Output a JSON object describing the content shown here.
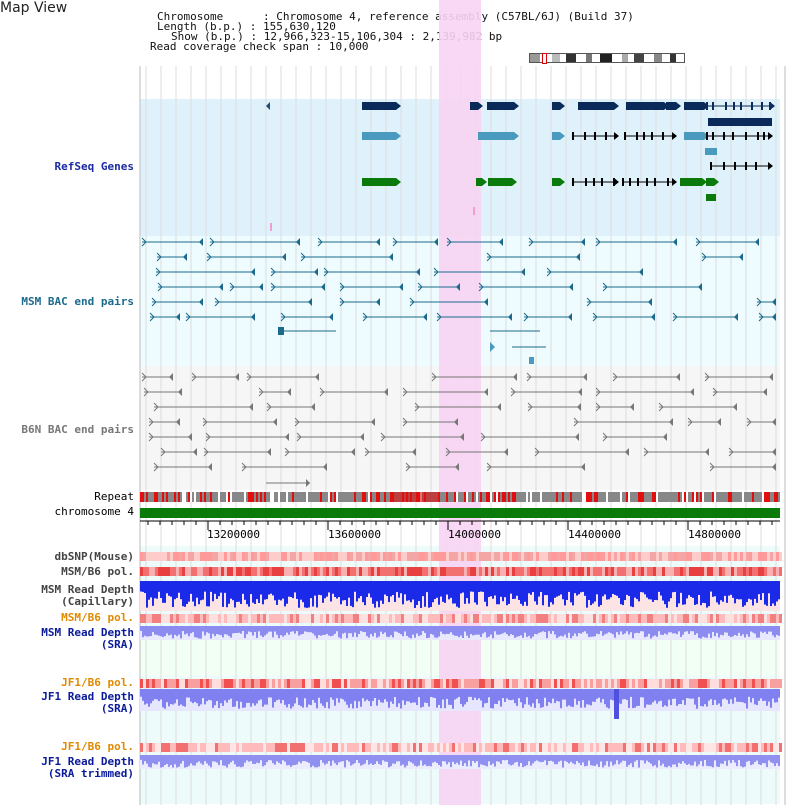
{
  "app": {
    "title": "Map View"
  },
  "header": {
    "chromosome_label": "Chromosome",
    "chromosome_value": ": Chromosome 4, reference assembly (C57BL/6J) (Build 37)",
    "length_label": "Length (b.p.)",
    "length_value": ": 155,630,120",
    "show_label": "Show (b.p.)",
    "show_value": ": 12,966,323-15,106,304 : 2,139,982 bp",
    "span_label": "Read coverage check span",
    "span_value": ": 10,000"
  },
  "tracks": {
    "refseq": "RefSeq Genes",
    "msm_bac": "MSM BAC end pairs",
    "b6n_bac": "B6N BAC end pairs",
    "repeat": "Repeat",
    "chromosome": "chromosome 4",
    "dbsnp": "dbSNP(Mouse)",
    "msm_b6_pol_1": "MSM/B6 pol.",
    "msm_depth_cap": "MSM Read Depth\n(Capillary)",
    "msm_b6_pol_2": "MSM/B6 pol.",
    "msm_depth_sra": "MSM Read Depth\n(SRA)",
    "jf1_b6_pol_1": "JF1/B6 pol.",
    "jf1_depth_sra": "JF1 Read Depth\n(SRA)",
    "jf1_b6_pol_2": "JF1/B6 pol.",
    "jf1_depth_trim": "JF1 Read Depth\n(SRA trimmed)"
  },
  "axis": {
    "ticks": [
      "13200000",
      "13600000",
      "14000000",
      "14400000",
      "14800000"
    ]
  },
  "colors": {
    "refseq_bg": "#dff2fb",
    "msm_bac": "#1b6a8c",
    "b6n_bac": "#666666",
    "highlight": "#f7d4f3",
    "chromosome": "#0a7a0a",
    "pol_label": "#e08a00",
    "depth_label": "#0a1a9a",
    "msm_bac_label": "#1b6a8c",
    "refseq_label": "#1a2aa0"
  }
}
